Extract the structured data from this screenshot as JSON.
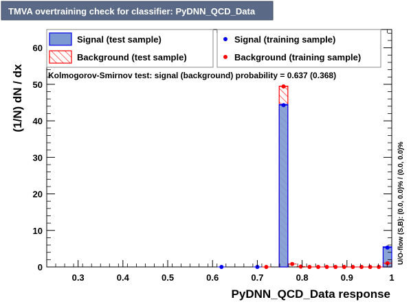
{
  "chart_data": {
    "type": "bar",
    "title": "TMVA overtraining check for classifier: PyDNN_QCD_Data",
    "xlabel": "PyDNN_QCD_Data response",
    "ylabel": "(1/N) dN / dx",
    "xlim": [
      0.23,
      1.0
    ],
    "ylim": [
      0,
      65
    ],
    "xticks": [
      "0.3",
      "0.4",
      "0.5",
      "0.6",
      "0.7",
      "0.8",
      "0.9",
      "1"
    ],
    "yticks": [
      "0",
      "10",
      "20",
      "30",
      "40",
      "50",
      "60"
    ],
    "ks_text": "Kolmogorov-Smirnov test: signal (background) probability = 0.637 (0.368)",
    "overflow_text": "U/O-flow (S,B): (0.0, 0.0)% / (0.0, 0.0)%",
    "legend": {
      "signal_test": "Signal (test sample)",
      "background_test": "Background (test sample)",
      "signal_train": "Signal (training sample)",
      "background_train": "Background (training sample)"
    },
    "bin_width": 0.0193,
    "signal_test_bins": [
      {
        "x0": 0.7488,
        "x1": 0.7681,
        "y": 44.5
      },
      {
        "x0": 0.9807,
        "x1": 1.0,
        "y": 5.5
      }
    ],
    "background_test_bins": [
      {
        "x0": 0.7488,
        "x1": 0.7681,
        "y": 49.5
      },
      {
        "x0": 0.9807,
        "x1": 1.0,
        "y": 1.3
      }
    ],
    "signal_train_points": [
      {
        "x": 0.62,
        "y": 0.0
      },
      {
        "x": 0.7,
        "y": 0.0
      },
      {
        "x": 0.7585,
        "y": 44.3
      },
      {
        "x": 0.9904,
        "y": 5.3
      }
    ],
    "background_train_points": [
      {
        "x": 0.72,
        "y": 0.0
      },
      {
        "x": 0.7585,
        "y": 49.4
      },
      {
        "x": 0.7778,
        "y": 0.8
      },
      {
        "x": 0.7971,
        "y": 0.1
      },
      {
        "x": 0.8165,
        "y": 0.0
      },
      {
        "x": 0.8358,
        "y": 0.0
      },
      {
        "x": 0.8551,
        "y": 0.0
      },
      {
        "x": 0.8745,
        "y": 0.0
      },
      {
        "x": 0.8938,
        "y": 0.0
      },
      {
        "x": 0.9131,
        "y": 0.0
      },
      {
        "x": 0.9325,
        "y": 0.0
      },
      {
        "x": 0.9518,
        "y": 0.0
      },
      {
        "x": 0.9711,
        "y": 0.0
      },
      {
        "x": 0.9904,
        "y": 1.0
      }
    ],
    "colors": {
      "signal_fill": "#7d99d1",
      "signal_line": "#0000ee",
      "background_line": "#ff0000",
      "title_bg": "#5a6a86",
      "title_text": "#ffffff"
    }
  }
}
